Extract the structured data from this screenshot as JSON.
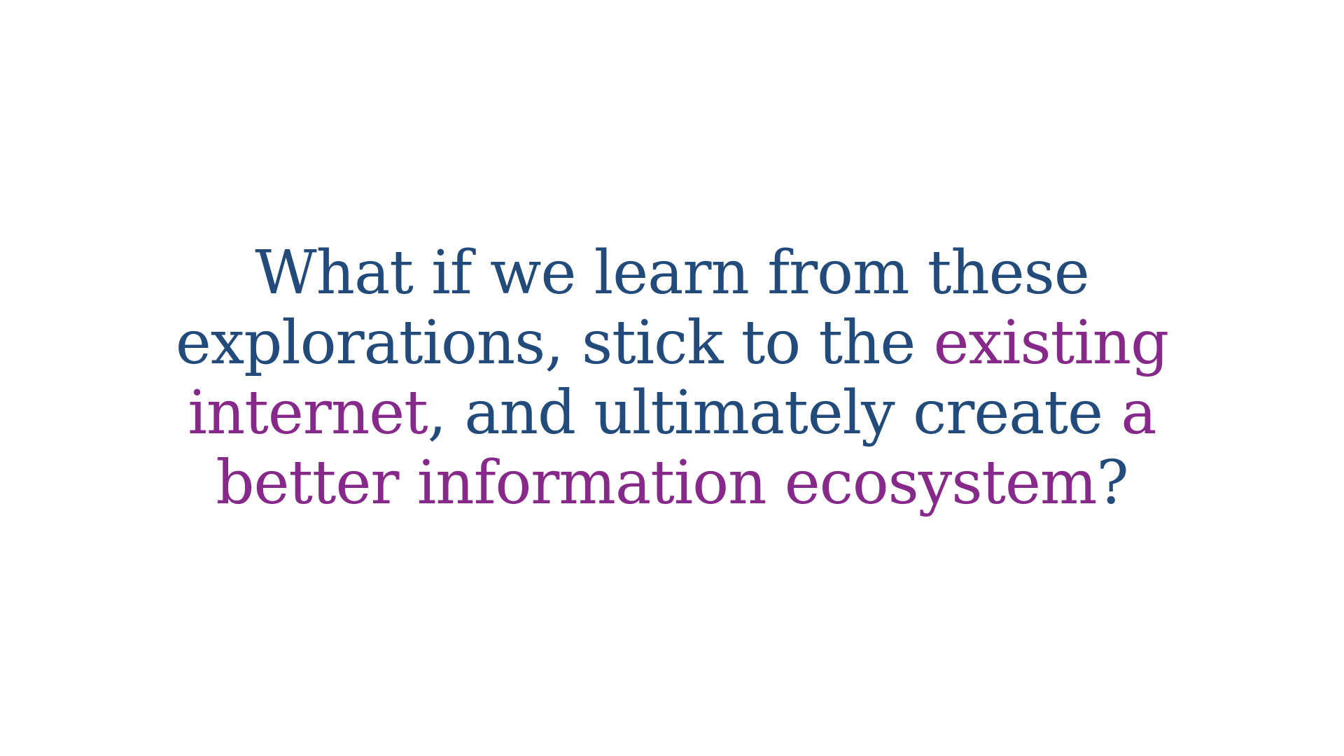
{
  "slide": {
    "lines": [
      [
        {
          "text": "What if we learn from these",
          "accent": false
        }
      ],
      [
        {
          "text": "explorations, stick to the ",
          "accent": false
        },
        {
          "text": "existing",
          "accent": true
        }
      ],
      [
        {
          "text": "internet",
          "accent": true
        },
        {
          "text": ", and ultimately create ",
          "accent": false
        },
        {
          "text": "a",
          "accent": true
        }
      ],
      [
        {
          "text": "better information ecosystem",
          "accent": true
        },
        {
          "text": "?",
          "accent": false
        }
      ]
    ]
  },
  "colors": {
    "text": "#224b7c",
    "accent": "#87298a"
  }
}
